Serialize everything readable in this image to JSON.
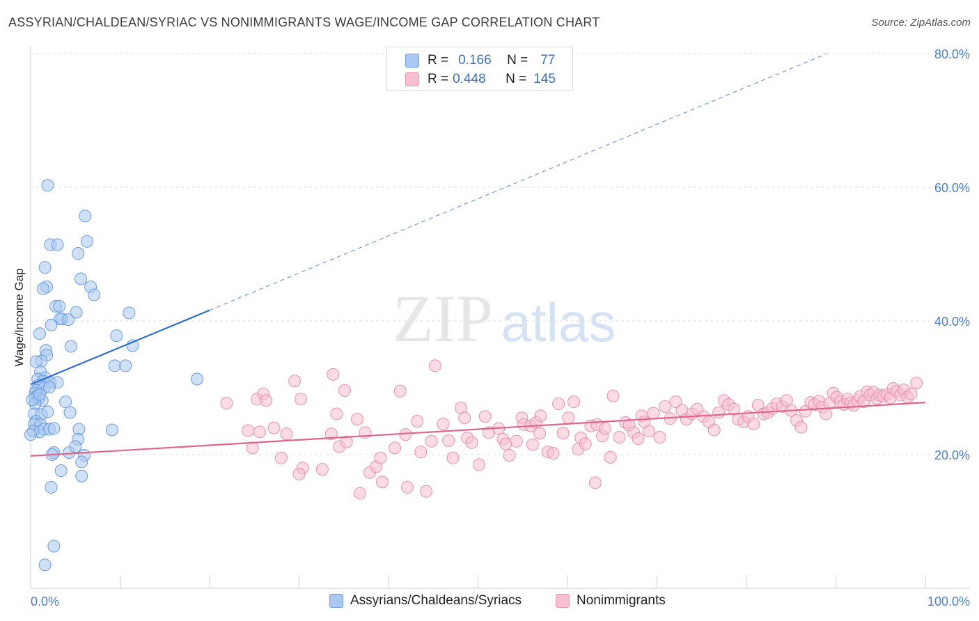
{
  "title": "ASSYRIAN/CHALDEAN/SYRIAC VS NONIMMIGRANTS WAGE/INCOME GAP CORRELATION CHART",
  "source": "Source: ZipAtlas.com",
  "watermark": {
    "zip": "ZIP",
    "atlas": "atlas"
  },
  "legend": {
    "r_label": "R =",
    "n_label": "N =",
    "rows": [
      {
        "r": "0.166",
        "n": "77",
        "color": "#aac8f0",
        "edge": "#6a9be0"
      },
      {
        "r": "0.448",
        "n": "145",
        "color": "#f8bfd0",
        "edge": "#e890ac"
      }
    ]
  },
  "bottom_legend": [
    {
      "label": "Assyrians/Chaldeans/Syriacs",
      "color": "#aac8f0",
      "edge": "#6a9be0"
    },
    {
      "label": "Nonimmigrants",
      "color": "#f8bfd0",
      "edge": "#e890ac"
    }
  ],
  "chart_data": {
    "type": "scatter",
    "title": "ASSYRIAN/CHALDEAN/SYRIAC VS NONIMMIGRANTS WAGE/INCOME GAP CORRELATION CHART",
    "xlabel": "",
    "ylabel": "Wage/Income Gap",
    "xlim": [
      0,
      100
    ],
    "ylim": [
      0,
      80
    ],
    "x_tick_labels": [
      "0.0%",
      "100.0%"
    ],
    "y_ticks": [
      20,
      40,
      60,
      80
    ],
    "y_tick_labels": [
      "20.0%",
      "40.0%",
      "60.0%",
      "80.0%"
    ],
    "grid": true,
    "legend_placement": "top-center",
    "series": [
      {
        "name": "Assyrians/Chaldeans/Syriacs",
        "color": "#6a9be0",
        "fill": "#aac8f0",
        "r": 0.166,
        "n": 77,
        "trend": {
          "x": [
            0,
            20
          ],
          "y": [
            30.5,
            41.6
          ],
          "dashed_to": [
            89,
            80
          ]
        },
        "points": [
          [
            1.9,
            60.3
          ],
          [
            6.1,
            55.7
          ],
          [
            2.2,
            51.4
          ],
          [
            3.0,
            51.4
          ],
          [
            6.3,
            51.9
          ],
          [
            5.3,
            50.1
          ],
          [
            1.6,
            48.0
          ],
          [
            5.6,
            46.3
          ],
          [
            1.8,
            45.1
          ],
          [
            1.4,
            44.8
          ],
          [
            6.7,
            45.1
          ],
          [
            7.1,
            43.9
          ],
          [
            2.8,
            42.2
          ],
          [
            3.2,
            42.2
          ],
          [
            5.1,
            41.3
          ],
          [
            11.0,
            41.2
          ],
          [
            3.5,
            40.3
          ],
          [
            3.3,
            40.3
          ],
          [
            4.2,
            40.2
          ],
          [
            2.3,
            39.4
          ],
          [
            1.0,
            38.1
          ],
          [
            9.6,
            37.8
          ],
          [
            4.5,
            36.2
          ],
          [
            11.4,
            36.3
          ],
          [
            1.7,
            35.6
          ],
          [
            1.8,
            34.9
          ],
          [
            1.2,
            34.0
          ],
          [
            0.6,
            33.9
          ],
          [
            9.4,
            33.3
          ],
          [
            10.6,
            33.3
          ],
          [
            1.1,
            32.4
          ],
          [
            1.6,
            31.5
          ],
          [
            0.8,
            31.3
          ],
          [
            1.4,
            31.0
          ],
          [
            2.2,
            30.8
          ],
          [
            3.0,
            30.8
          ],
          [
            0.9,
            30.4
          ],
          [
            1.5,
            30.0
          ],
          [
            2.1,
            30.1
          ],
          [
            0.6,
            29.6
          ],
          [
            0.5,
            29.2
          ],
          [
            0.7,
            28.8
          ],
          [
            0.5,
            28.5
          ],
          [
            0.9,
            28.4
          ],
          [
            1.3,
            28.1
          ],
          [
            3.9,
            27.9
          ],
          [
            0.5,
            27.6
          ],
          [
            0.4,
            26.1
          ],
          [
            1.2,
            26.0
          ],
          [
            1.9,
            26.4
          ],
          [
            4.4,
            26.3
          ],
          [
            0.6,
            25.0
          ],
          [
            0.4,
            24.6
          ],
          [
            1.1,
            24.5
          ],
          [
            0.3,
            23.5
          ],
          [
            1.0,
            23.4
          ],
          [
            1.5,
            23.8
          ],
          [
            2.1,
            23.8
          ],
          [
            2.6,
            23.9
          ],
          [
            5.4,
            23.8
          ],
          [
            0.0,
            23.0
          ],
          [
            5.3,
            22.3
          ],
          [
            9.1,
            23.7
          ],
          [
            2.6,
            20.3
          ],
          [
            4.3,
            20.3
          ],
          [
            2.4,
            20.0
          ],
          [
            5.0,
            21.2
          ],
          [
            6.0,
            19.9
          ],
          [
            5.7,
            18.9
          ],
          [
            3.4,
            17.6
          ],
          [
            5.7,
            16.8
          ],
          [
            2.3,
            15.1
          ],
          [
            18.6,
            31.3
          ],
          [
            2.6,
            6.3
          ],
          [
            1.6,
            3.5
          ],
          [
            0.2,
            28.2
          ],
          [
            1.0,
            29.0
          ]
        ]
      },
      {
        "name": "Nonimmigrants",
        "color": "#e890ac",
        "fill": "#f8bfd0",
        "r": 0.448,
        "n": 145,
        "trend": {
          "x": [
            0,
            100
          ],
          "y": [
            19.8,
            27.8
          ]
        },
        "points": [
          [
            21.9,
            27.7
          ],
          [
            24.3,
            23.6
          ],
          [
            25.3,
            28.3
          ],
          [
            26.0,
            29.1
          ],
          [
            26.3,
            28.1
          ],
          [
            25.6,
            23.4
          ],
          [
            24.8,
            21.0
          ],
          [
            27.2,
            24.0
          ],
          [
            29.5,
            31.0
          ],
          [
            30.2,
            28.3
          ],
          [
            28.6,
            23.1
          ],
          [
            28.0,
            19.5
          ],
          [
            30.4,
            18.0
          ],
          [
            30.0,
            17.1
          ],
          [
            32.6,
            17.8
          ],
          [
            33.8,
            32.0
          ],
          [
            34.2,
            26.1
          ],
          [
            35.1,
            29.6
          ],
          [
            34.5,
            21.2
          ],
          [
            36.5,
            25.3
          ],
          [
            37.4,
            23.3
          ],
          [
            37.9,
            17.3
          ],
          [
            38.6,
            18.2
          ],
          [
            39.1,
            19.5
          ],
          [
            36.8,
            14.2
          ],
          [
            39.3,
            15.9
          ],
          [
            41.3,
            29.5
          ],
          [
            41.9,
            23.0
          ],
          [
            43.2,
            25.0
          ],
          [
            43.6,
            20.4
          ],
          [
            42.1,
            15.1
          ],
          [
            44.2,
            14.5
          ],
          [
            44.8,
            22.0
          ],
          [
            46.1,
            24.6
          ],
          [
            46.7,
            22.1
          ],
          [
            47.2,
            19.5
          ],
          [
            48.1,
            27.0
          ],
          [
            48.5,
            25.5
          ],
          [
            48.8,
            22.5
          ],
          [
            49.3,
            21.8
          ],
          [
            50.8,
            25.7
          ],
          [
            51.2,
            23.3
          ],
          [
            52.3,
            23.9
          ],
          [
            52.8,
            22.3
          ],
          [
            53.1,
            21.6
          ],
          [
            54.3,
            22.0
          ],
          [
            54.9,
            25.5
          ],
          [
            55.1,
            24.5
          ],
          [
            55.9,
            24.3
          ],
          [
            56.5,
            24.8
          ],
          [
            56.9,
            23.2
          ],
          [
            57.8,
            20.4
          ],
          [
            58.4,
            20.2
          ],
          [
            59.0,
            27.6
          ],
          [
            59.5,
            23.2
          ],
          [
            60.1,
            25.5
          ],
          [
            60.7,
            27.9
          ],
          [
            61.2,
            20.8
          ],
          [
            61.5,
            22.5
          ],
          [
            62.0,
            21.6
          ],
          [
            62.6,
            24.3
          ],
          [
            63.3,
            24.5
          ],
          [
            63.9,
            22.8
          ],
          [
            64.2,
            23.9
          ],
          [
            64.8,
            19.6
          ],
          [
            65.1,
            28.8
          ],
          [
            65.8,
            22.6
          ],
          [
            66.5,
            24.8
          ],
          [
            66.9,
            24.4
          ],
          [
            67.4,
            23.3
          ],
          [
            67.9,
            22.4
          ],
          [
            68.3,
            25.8
          ],
          [
            68.6,
            24.9
          ],
          [
            69.1,
            23.5
          ],
          [
            69.6,
            26.2
          ],
          [
            70.3,
            22.6
          ],
          [
            70.9,
            27.2
          ],
          [
            71.5,
            25.4
          ],
          [
            72.1,
            27.9
          ],
          [
            72.8,
            26.6
          ],
          [
            73.3,
            25.3
          ],
          [
            73.9,
            26.1
          ],
          [
            74.5,
            26.8
          ],
          [
            75.2,
            25.7
          ],
          [
            75.8,
            24.9
          ],
          [
            76.4,
            23.7
          ],
          [
            76.9,
            26.3
          ],
          [
            77.5,
            28.1
          ],
          [
            78.0,
            27.5
          ],
          [
            78.6,
            26.8
          ],
          [
            79.1,
            25.3
          ],
          [
            79.7,
            24.9
          ],
          [
            80.2,
            25.7
          ],
          [
            80.8,
            24.6
          ],
          [
            81.3,
            27.4
          ],
          [
            81.9,
            26.1
          ],
          [
            82.4,
            26.3
          ],
          [
            82.9,
            26.9
          ],
          [
            83.4,
            27.6
          ],
          [
            84.0,
            27.2
          ],
          [
            84.5,
            28.1
          ],
          [
            85.0,
            26.6
          ],
          [
            85.6,
            25.1
          ],
          [
            86.1,
            24.1
          ],
          [
            86.6,
            26.5
          ],
          [
            87.2,
            27.8
          ],
          [
            87.6,
            27.5
          ],
          [
            88.1,
            28.0
          ],
          [
            88.5,
            27.1
          ],
          [
            88.9,
            26.1
          ],
          [
            89.3,
            27.7
          ],
          [
            89.7,
            29.2
          ],
          [
            90.1,
            28.6
          ],
          [
            90.5,
            27.9
          ],
          [
            90.9,
            27.5
          ],
          [
            91.3,
            28.3
          ],
          [
            91.6,
            27.7
          ],
          [
            92.0,
            27.4
          ],
          [
            92.4,
            28.1
          ],
          [
            92.7,
            28.7
          ],
          [
            93.1,
            27.9
          ],
          [
            93.5,
            29.4
          ],
          [
            93.8,
            28.9
          ],
          [
            94.2,
            29.3
          ],
          [
            94.6,
            28.4
          ],
          [
            94.9,
            28.9
          ],
          [
            95.3,
            28.7
          ],
          [
            95.7,
            29.0
          ],
          [
            96.1,
            28.5
          ],
          [
            96.4,
            29.9
          ],
          [
            96.8,
            29.5
          ],
          [
            97.2,
            28.9
          ],
          [
            97.6,
            29.7
          ],
          [
            98.0,
            28.6
          ],
          [
            98.4,
            29.1
          ],
          [
            99.0,
            30.7
          ],
          [
            33.6,
            23.1
          ],
          [
            35.3,
            21.9
          ],
          [
            40.7,
            21.0
          ],
          [
            45.2,
            33.3
          ],
          [
            50.1,
            18.5
          ],
          [
            53.5,
            19.9
          ],
          [
            56.1,
            21.5
          ],
          [
            57.0,
            25.8
          ],
          [
            63.1,
            15.8
          ]
        ]
      }
    ]
  }
}
